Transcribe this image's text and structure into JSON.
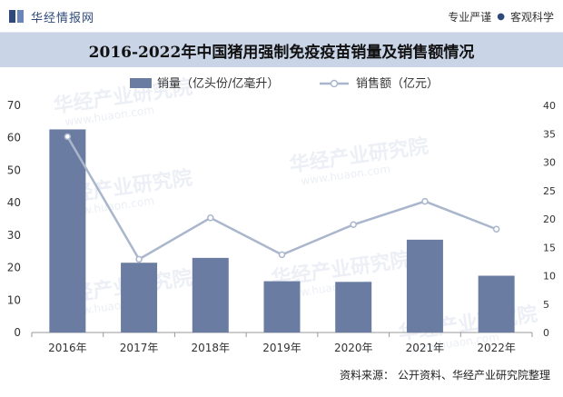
{
  "header": {
    "logo_text": "华经情报网",
    "slogan_left": "专业严谨",
    "slogan_right": "客观科学"
  },
  "chart_data": {
    "type": "bar+line",
    "title": "2016-2022年中国猪用强制免疫疫苗销量及销售额情况",
    "categories": [
      "2016年",
      "2017年",
      "2018年",
      "2019年",
      "2020年",
      "2021年",
      "2022年"
    ],
    "series": [
      {
        "name": "销量（亿头份/亿毫升）",
        "type": "bar",
        "axis": "left",
        "color": "#6a7ca2",
        "values": [
          62.6,
          21.5,
          23.0,
          15.8,
          15.6,
          28.6,
          17.5
        ]
      },
      {
        "name": "销售额（亿元）",
        "type": "line",
        "axis": "right",
        "color": "#aab6cc",
        "values": [
          34.5,
          12.9,
          20.2,
          13.7,
          19.0,
          23.1,
          18.2
        ]
      }
    ],
    "y_left": {
      "min": 0,
      "max": 70,
      "ticks": [
        0,
        10,
        20,
        30,
        40,
        50,
        60,
        70
      ]
    },
    "y_right": {
      "min": 0,
      "max": 40,
      "ticks": [
        0,
        5,
        10,
        15,
        20,
        25,
        30,
        35,
        40
      ]
    },
    "legend_position": "top",
    "grid": false
  },
  "watermark": {
    "cn": "华经产业研究院",
    "en": "www.huaon.com"
  },
  "source": {
    "label": "资料来源：",
    "text": "公开资料、华经产业研究院整理"
  }
}
